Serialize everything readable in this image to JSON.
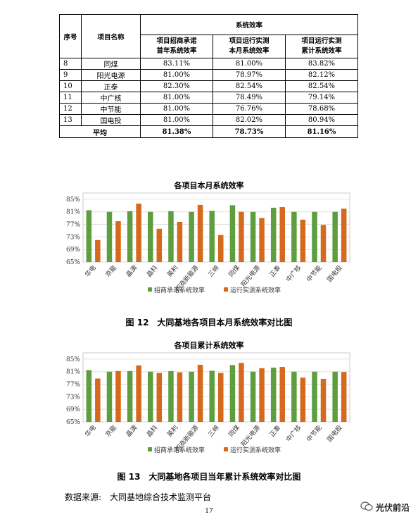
{
  "table": {
    "col_index": "序号",
    "col_name": "项目名称",
    "group_header": "系统效率",
    "col_a_line1": "项目招商承诺",
    "col_a_line2": "首年系统效率",
    "col_b_line1": "项目运行实测",
    "col_b_line2": "本月系统效率",
    "col_c_line1": "项目运行实测",
    "col_c_line2": "累计系统效率",
    "rows": [
      {
        "no": "8",
        "name": "同煤",
        "a": "83.11%",
        "b": "81.00%",
        "c": "83.82%"
      },
      {
        "no": "9",
        "name": "阳光电源",
        "a": "81.00%",
        "b": "78.97%",
        "c": "82.12%"
      },
      {
        "no": "10",
        "name": "正泰",
        "a": "82.30%",
        "b": "82.54%",
        "c": "82.54%"
      },
      {
        "no": "11",
        "name": "中广核",
        "a": "81.00%",
        "b": "78.49%",
        "c": "79.14%"
      },
      {
        "no": "12",
        "name": "中节能",
        "a": "81.00%",
        "b": "76.76%",
        "c": "78.68%"
      },
      {
        "no": "13",
        "name": "国电投",
        "a": "81.00%",
        "b": "82.02%",
        "c": "80.94%"
      }
    ],
    "avg_label": "平均",
    "avg_a": "81.38%",
    "avg_b": "78.73%",
    "avg_c": "81.16%"
  },
  "chart_data": [
    {
      "type": "bar",
      "title": "各项目本月系统效率",
      "categories": [
        "华电",
        "京能",
        "晶澳",
        "晶科",
        "英利",
        "招商新能源",
        "三峡",
        "同煤",
        "阳光电源",
        "正泰",
        "中广核",
        "中节能",
        "国电投"
      ],
      "series": [
        {
          "name": "招商承诺系统效率",
          "color": "#5e9e3e",
          "values": [
            81.5,
            81.0,
            81.2,
            81.0,
            81.2,
            81.0,
            81.3,
            83.1,
            81.0,
            82.3,
            81.0,
            81.0,
            81.0
          ]
        },
        {
          "name": "运行实测系统效率",
          "color": "#d5691e",
          "values": [
            72.0,
            78.0,
            83.6,
            75.6,
            77.8,
            83.2,
            73.6,
            81.0,
            79.0,
            82.5,
            78.5,
            76.8,
            82.0
          ]
        }
      ],
      "ylim": [
        65,
        87
      ],
      "yticks": [
        "65%",
        "69%",
        "73%",
        "77%",
        "81%",
        "85%"
      ],
      "ytick_values": [
        65,
        69,
        73,
        77,
        81,
        85
      ],
      "legend_position": "bottom"
    },
    {
      "type": "bar",
      "title": "各项目累计系统效率",
      "categories": [
        "华电",
        "京能",
        "晶澳",
        "晶科",
        "英利",
        "招商新能源",
        "三峡",
        "同煤",
        "阳光电源",
        "正泰",
        "中广核",
        "中节能",
        "国电投"
      ],
      "series": [
        {
          "name": "招商承诺系统效率",
          "color": "#5e9e3e",
          "values": [
            81.5,
            81.0,
            81.2,
            81.0,
            81.2,
            81.0,
            81.3,
            83.1,
            81.0,
            82.3,
            81.0,
            81.0,
            81.0
          ]
        },
        {
          "name": "运行实测系统效率",
          "color": "#d5691e",
          "values": [
            78.8,
            81.2,
            83.0,
            80.6,
            80.8,
            83.2,
            80.6,
            83.8,
            82.1,
            82.5,
            79.1,
            78.7,
            80.9
          ]
        }
      ],
      "ylim": [
        65,
        87
      ],
      "yticks": [
        "65%",
        "69%",
        "73%",
        "77%",
        "81%",
        "85%"
      ],
      "ytick_values": [
        65,
        69,
        73,
        77,
        81,
        85
      ],
      "legend_position": "bottom"
    }
  ],
  "fig12_caption": "图 12　大同基地各项目本月系统效率对比图",
  "fig13_caption": "图 13　大同基地各项目当年累计系统效率对比图",
  "source_text": "数据来源:　大同基地综合技术监测平台",
  "page_number": "17",
  "watermark": "光伏前沿"
}
